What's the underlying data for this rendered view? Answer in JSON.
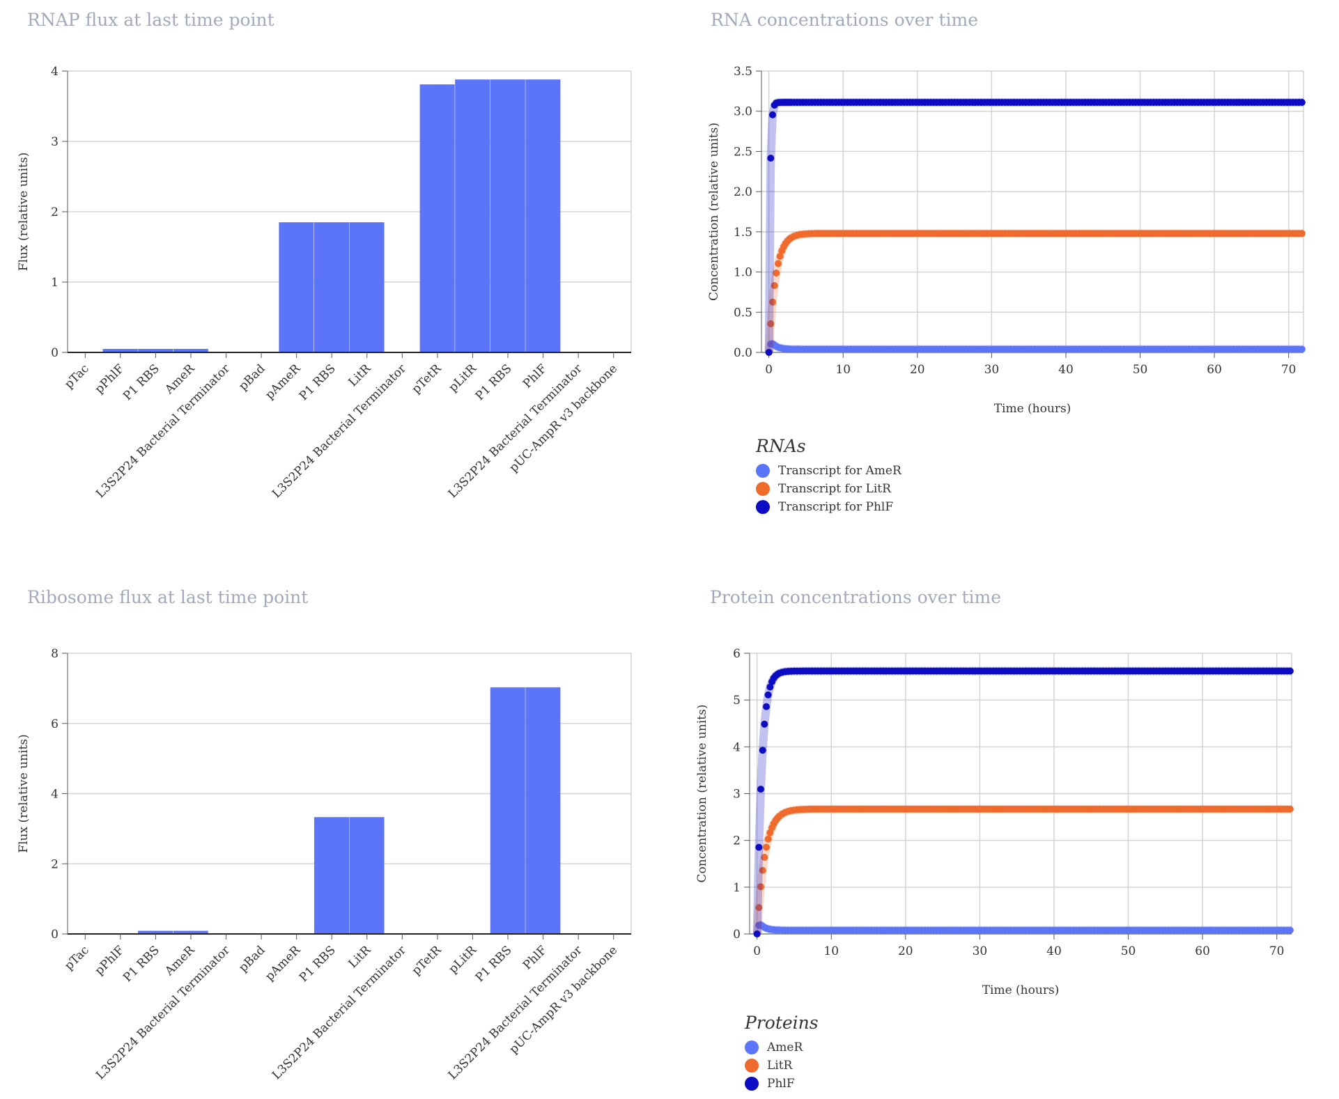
{
  "panels": {
    "rnap_title": "RNAP flux at last time point",
    "rna_title": "RNA concentrations over time",
    "ribo_title": "Ribosome flux at last time point",
    "protein_title": "Protein concentrations over time"
  },
  "colors": {
    "bar": "#5c75f8",
    "series1": "#5c75f8",
    "series2": "#f06a2c",
    "series3": "#0c0cc4",
    "grid": "#d4d4d4"
  },
  "chart_data": [
    {
      "id": "rnap",
      "type": "bar",
      "ylabel": "Flux (relative units)",
      "ylim": [
        0,
        4
      ],
      "yticks": [
        0,
        1,
        2,
        3,
        4
      ],
      "categories": [
        "pTac",
        "pPhlF",
        "P1 RBS",
        "AmeR",
        "L3S2P24 Bacterial Terminator",
        "pBad",
        "pAmeR",
        "P1 RBS",
        "LitR",
        "L3S2P24 Bacterial Terminator",
        "pTetR",
        "pLitR",
        "P1 RBS",
        "PhlF",
        "L3S2P24 Bacterial Terminator",
        "pUC-AmpR v3 backbone"
      ],
      "values": [
        0,
        0.05,
        0.05,
        0.05,
        0,
        0,
        1.85,
        1.85,
        1.85,
        0,
        3.81,
        3.88,
        3.88,
        3.88,
        0,
        0
      ]
    },
    {
      "id": "ribo",
      "type": "bar",
      "ylabel": "Flux (relative units)",
      "ylim": [
        0,
        8
      ],
      "yticks": [
        0,
        2,
        4,
        6,
        8
      ],
      "categories": [
        "pTac",
        "pPhlF",
        "P1 RBS",
        "AmeR",
        "L3S2P24 Bacterial Terminator",
        "pBad",
        "pAmeR",
        "P1 RBS",
        "LitR",
        "L3S2P24 Bacterial Terminator",
        "pTetR",
        "pLitR",
        "P1 RBS",
        "PhlF",
        "L3S2P24 Bacterial Terminator",
        "pUC-AmpR v3 backbone"
      ],
      "values": [
        0,
        0,
        0.09,
        0.09,
        0,
        0,
        0,
        3.33,
        3.33,
        0,
        0,
        0,
        7.03,
        7.03,
        0,
        0
      ]
    },
    {
      "id": "rna",
      "type": "scatter",
      "xlabel": "Time (hours)",
      "ylabel": "Concentration (relative units)",
      "xlim": [
        -1,
        72
      ],
      "ylim": [
        0,
        3.5
      ],
      "xticks": [
        0,
        10,
        20,
        30,
        40,
        50,
        60,
        70
      ],
      "yticks": [
        "0.0",
        "0.5",
        "1.0",
        "1.5",
        "2.0",
        "2.5",
        "3.0",
        "3.5"
      ],
      "legend_title": "RNAs",
      "series": [
        {
          "name": "Transcript for AmeR",
          "steady": 0.04,
          "peak": 0.2,
          "rate": 1.0
        },
        {
          "name": "Transcript for LitR",
          "steady": 1.48,
          "rate": 1.1
        },
        {
          "name": "Transcript for PhlF",
          "steady": 3.11,
          "rate": 6.0
        }
      ]
    },
    {
      "id": "protein",
      "type": "scatter",
      "xlabel": "Time (hours)",
      "ylabel": "Concentration (relative units)",
      "xlim": [
        -1,
        72
      ],
      "ylim": [
        0,
        6
      ],
      "xticks": [
        0,
        10,
        20,
        30,
        40,
        50,
        60,
        70
      ],
      "yticks": [
        "0",
        "1",
        "2",
        "3",
        "4",
        "5",
        "6"
      ],
      "legend_title": "Proteins",
      "series": [
        {
          "name": "AmeR",
          "steady": 0.08,
          "peak": 0.35,
          "rate": 1.0
        },
        {
          "name": "LitR",
          "steady": 2.67,
          "rate": 0.95
        },
        {
          "name": "PhlF",
          "steady": 5.62,
          "rate": 1.6
        }
      ]
    }
  ]
}
